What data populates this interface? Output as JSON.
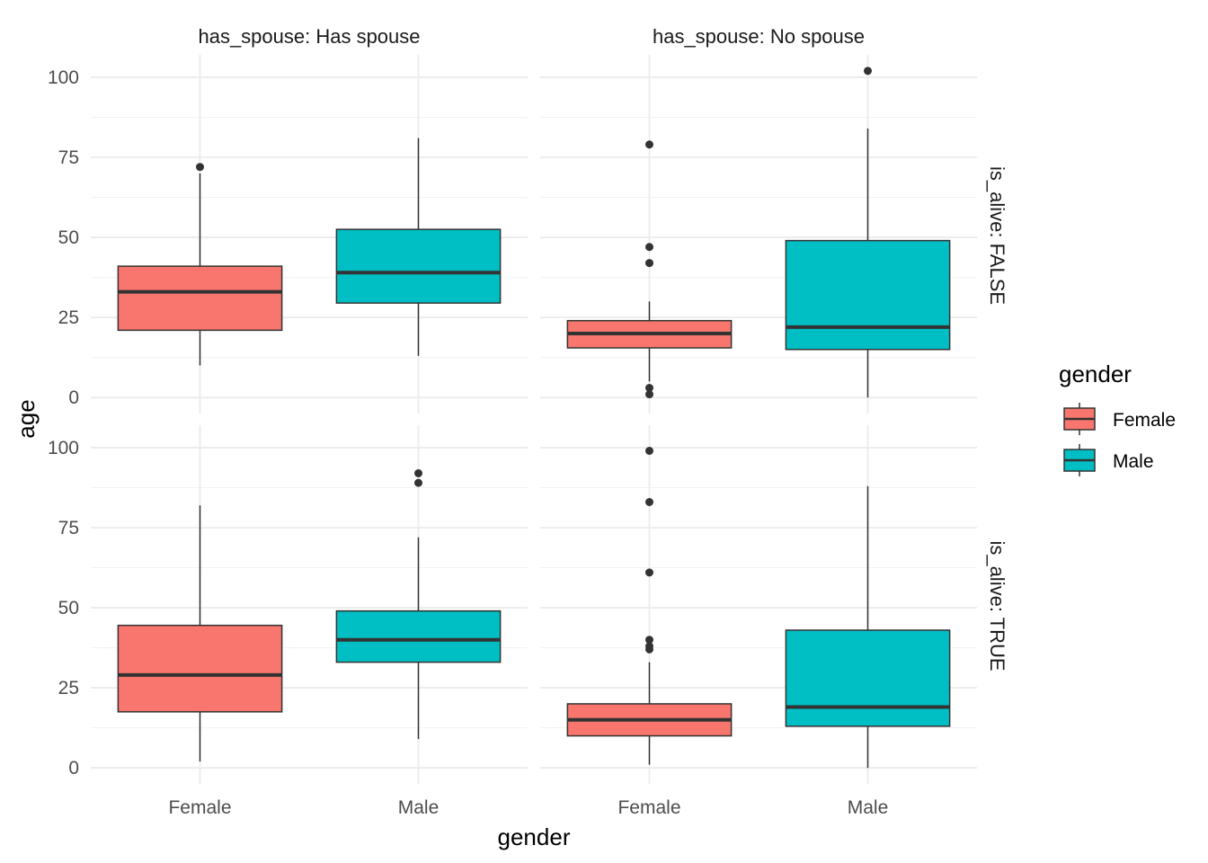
{
  "chart_data": {
    "type": "boxplot",
    "xlabel": "gender",
    "ylabel": "age",
    "ylim": [
      -5,
      107
    ],
    "y_ticks": [
      "0",
      "25",
      "50",
      "75",
      "100"
    ],
    "categories": [
      "Female",
      "Male"
    ],
    "col_facets": [
      "has_spouse: Has spouse",
      "has_spouse: No spouse"
    ],
    "row_facets": [
      "is_alive: FALSE",
      "is_alive: TRUE"
    ],
    "legend": {
      "title": "gender",
      "position": "right",
      "entries": [
        {
          "label": "Female",
          "color": "#F8766D"
        },
        {
          "label": "Male",
          "color": "#00BFC4"
        }
      ]
    },
    "grid": true,
    "panels": [
      {
        "col": 0,
        "row": 0,
        "boxes": [
          {
            "category": "Female",
            "min": 10,
            "q1": 21,
            "median": 33,
            "q3": 41,
            "max": 70,
            "outliers": [
              72
            ]
          },
          {
            "category": "Male",
            "min": 13,
            "q1": 29.5,
            "median": 39,
            "q3": 52.5,
            "max": 81,
            "outliers": []
          }
        ]
      },
      {
        "col": 1,
        "row": 0,
        "boxes": [
          {
            "category": "Female",
            "min": 5,
            "q1": 15.5,
            "median": 20,
            "q3": 24,
            "max": 30,
            "outliers": [
              79,
              47,
              42,
              3,
              1
            ]
          },
          {
            "category": "Male",
            "min": 0,
            "q1": 15,
            "median": 22,
            "q3": 49,
            "max": 84,
            "outliers": [
              102
            ]
          }
        ]
      },
      {
        "col": 0,
        "row": 1,
        "boxes": [
          {
            "category": "Female",
            "min": 2,
            "q1": 17.5,
            "median": 29,
            "q3": 44.5,
            "max": 82,
            "outliers": []
          },
          {
            "category": "Male",
            "min": 9,
            "q1": 33,
            "median": 40,
            "q3": 49,
            "max": 72,
            "outliers": [
              92,
              89
            ]
          }
        ]
      },
      {
        "col": 1,
        "row": 1,
        "boxes": [
          {
            "category": "Female",
            "min": 1,
            "q1": 10,
            "median": 15,
            "q3": 20,
            "max": 33,
            "outliers": [
              99,
              83,
              61,
              40,
              38,
              37
            ]
          },
          {
            "category": "Male",
            "min": 0,
            "q1": 13,
            "median": 19,
            "q3": 43,
            "max": 88,
            "outliers": []
          }
        ]
      }
    ]
  }
}
